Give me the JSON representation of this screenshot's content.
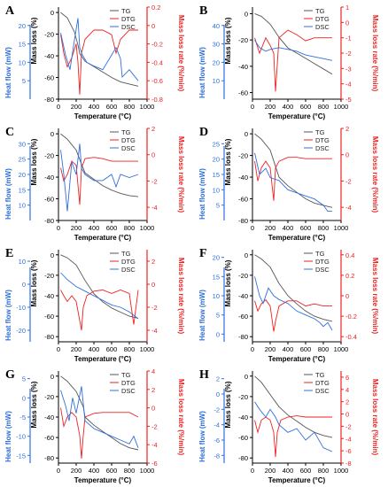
{
  "figure": {
    "series_names": [
      "TG",
      "DTG",
      "DSC"
    ],
    "colors": {
      "tg": "#555555",
      "dtg": "#ee2222",
      "dsc": "#2f6fde",
      "axis": "#000000"
    },
    "axis_labels": {
      "x": "Temperature (°C)",
      "left_tg": "Mass loss (%)",
      "left_dsc": "Heat flow (mW)",
      "right": "Mass loss rate (%/min)"
    }
  },
  "chart_data": [
    {
      "panel": "A",
      "type": "line",
      "x_ticks": [
        0,
        200,
        400,
        600,
        800,
        1000
      ],
      "tg_axis": {
        "ticks": [
          0,
          -20,
          -40,
          -60,
          -80
        ],
        "range": [
          -80,
          5
        ]
      },
      "dsc_axis": {
        "ticks": [
          5,
          10,
          15,
          20
        ],
        "range": [
          0,
          25
        ]
      },
      "dtg_axis": {
        "ticks": [
          0.2,
          0.0,
          -0.2,
          -0.4,
          -0.6,
          -0.8
        ],
        "range": [
          -0.8,
          0.2
        ]
      },
      "series": [
        {
          "name": "TG",
          "axis": "tg",
          "x": [
            25,
            100,
            180,
            220,
            240,
            300,
            400,
            500,
            600,
            700,
            800,
            900
          ],
          "y": [
            0,
            -5,
            -18,
            -30,
            -38,
            -45,
            -50,
            -55,
            -60,
            -64,
            -66,
            -68
          ]
        },
        {
          "name": "DTG",
          "axis": "dtg",
          "x": [
            25,
            60,
            100,
            150,
            200,
            220,
            240,
            260,
            300,
            400,
            500,
            600,
            650,
            700,
            800,
            900
          ],
          "y": [
            -0.1,
            -0.3,
            -0.45,
            -0.35,
            -0.2,
            -0.4,
            -0.75,
            -0.3,
            -0.15,
            -0.05,
            -0.05,
            -0.1,
            -0.3,
            -0.15,
            -0.05,
            -0.05
          ]
        },
        {
          "name": "DSC",
          "axis": "dsc",
          "x": [
            25,
            80,
            130,
            180,
            220,
            240,
            270,
            320,
            400,
            500,
            600,
            650,
            700,
            720,
            800,
            900
          ],
          "y": [
            18,
            12,
            8,
            16,
            22,
            14,
            12,
            10,
            9,
            8,
            12,
            14,
            11,
            6,
            8,
            5
          ]
        }
      ]
    },
    {
      "panel": "B",
      "type": "line",
      "x_ticks": [
        0,
        200,
        400,
        600,
        800,
        1000
      ],
      "tg_axis": {
        "ticks": [
          0,
          -20,
          -40,
          -60
        ],
        "range": [
          -65,
          5
        ]
      },
      "dsc_axis": {
        "ticks": [
          10,
          20,
          30,
          40
        ],
        "range": [
          0,
          50
        ]
      },
      "dtg_axis": {
        "ticks": [
          1,
          0,
          -1,
          -2,
          -3,
          -4,
          -5
        ],
        "range": [
          -5,
          1
        ]
      },
      "series": [
        {
          "name": "TG",
          "axis": "tg",
          "x": [
            25,
            100,
            200,
            300,
            400,
            500,
            600,
            700,
            800,
            900
          ],
          "y": [
            0,
            -2,
            -8,
            -18,
            -26,
            -30,
            -34,
            -38,
            -42,
            -46
          ]
        },
        {
          "name": "DTG",
          "axis": "dtg",
          "x": [
            25,
            80,
            150,
            200,
            240,
            260,
            300,
            400,
            500,
            600,
            700,
            800,
            900
          ],
          "y": [
            -1,
            -2,
            -1,
            -1.5,
            -2,
            -4.5,
            -1,
            -0.5,
            -0.8,
            -1.2,
            -1,
            -1,
            -1
          ]
        },
        {
          "name": "DSC",
          "axis": "dsc",
          "x": [
            25,
            80,
            150,
            200,
            300,
            400,
            500,
            600,
            700,
            800,
            900
          ],
          "y": [
            32,
            28,
            26,
            27,
            28,
            27,
            26,
            24,
            23,
            22,
            21
          ]
        }
      ]
    },
    {
      "panel": "C",
      "type": "line",
      "x_ticks": [
        0,
        200,
        400,
        600,
        800,
        1000
      ],
      "tg_axis": {
        "ticks": [
          0,
          -20,
          -40,
          -60,
          -80
        ],
        "range": [
          -80,
          5
        ]
      },
      "dsc_axis": {
        "ticks": [
          10,
          15,
          20,
          25,
          30
        ],
        "range": [
          5,
          35
        ]
      },
      "dtg_axis": {
        "ticks": [
          2,
          0,
          -2,
          -4
        ],
        "range": [
          -5,
          2
        ]
      },
      "series": [
        {
          "name": "TG",
          "axis": "tg",
          "x": [
            25,
            100,
            200,
            260,
            300,
            400,
            500,
            600,
            700,
            800,
            900
          ],
          "y": [
            0,
            -5,
            -15,
            -28,
            -36,
            -42,
            -48,
            -52,
            -55,
            -57,
            -58
          ]
        },
        {
          "name": "DTG",
          "axis": "dtg",
          "x": [
            25,
            60,
            100,
            150,
            200,
            240,
            260,
            300,
            400,
            500,
            600,
            700,
            800,
            900
          ],
          "y": [
            -1,
            -2,
            -1.5,
            -0.5,
            -0.8,
            -3.8,
            -1,
            -0.3,
            -0.2,
            -0.3,
            -0.5,
            -0.5,
            -0.5,
            -0.5
          ]
        },
        {
          "name": "DSC",
          "axis": "dsc",
          "x": [
            25,
            60,
            100,
            150,
            200,
            240,
            260,
            300,
            400,
            500,
            600,
            650,
            700,
            800,
            900
          ],
          "y": [
            28,
            20,
            8,
            24,
            20,
            30,
            22,
            20,
            18,
            18,
            20,
            16,
            20,
            19,
            20
          ]
        }
      ]
    },
    {
      "panel": "D",
      "type": "line",
      "x_ticks": [
        0,
        200,
        400,
        600,
        800,
        1000
      ],
      "tg_axis": {
        "ticks": [
          0,
          -20,
          -40,
          -60,
          -80
        ],
        "range": [
          -80,
          5
        ]
      },
      "dsc_axis": {
        "ticks": [
          5,
          10,
          15,
          20,
          25
        ],
        "range": [
          0,
          30
        ]
      },
      "dtg_axis": {
        "ticks": [
          2,
          0,
          -2,
          -4
        ],
        "range": [
          -5,
          2
        ]
      },
      "series": [
        {
          "name": "TG",
          "axis": "tg",
          "x": [
            25,
            100,
            200,
            260,
            300,
            400,
            500,
            600,
            700,
            800,
            900
          ],
          "y": [
            0,
            -5,
            -15,
            -30,
            -40,
            -48,
            -54,
            -60,
            -64,
            -66,
            -68
          ]
        },
        {
          "name": "DTG",
          "axis": "dtg",
          "x": [
            25,
            60,
            100,
            150,
            200,
            240,
            260,
            300,
            400,
            500,
            600,
            700,
            800,
            900
          ],
          "y": [
            -0.5,
            -2,
            -1,
            -0.5,
            -1,
            -3.5,
            -1,
            -0.5,
            -0.2,
            -0.2,
            -0.3,
            -0.3,
            -0.3,
            -0.3
          ]
        },
        {
          "name": "DSC",
          "axis": "dsc",
          "x": [
            25,
            80,
            150,
            200,
            300,
            400,
            500,
            600,
            700,
            800,
            850,
            900
          ],
          "y": [
            22,
            15,
            17,
            14,
            13,
            10,
            9,
            8,
            7,
            5,
            3,
            3
          ]
        }
      ]
    },
    {
      "panel": "E",
      "type": "line",
      "x_ticks": [
        0,
        200,
        400,
        600,
        800,
        1000
      ],
      "tg_axis": {
        "ticks": [
          0,
          -20,
          -40,
          -60,
          -80
        ],
        "range": [
          -85,
          5
        ]
      },
      "dsc_axis": {
        "ticks": [
          -20,
          -10,
          0,
          10
        ],
        "range": [
          -25,
          15
        ]
      },
      "dtg_axis": {
        "ticks": [
          2,
          0,
          -2,
          -4
        ],
        "range": [
          -5,
          3
        ]
      },
      "series": [
        {
          "name": "TG",
          "axis": "tg",
          "x": [
            25,
            100,
            200,
            300,
            400,
            500,
            600,
            700,
            800,
            900
          ],
          "y": [
            0,
            -3,
            -10,
            -25,
            -38,
            -46,
            -52,
            -56,
            -60,
            -62
          ]
        },
        {
          "name": "DTG",
          "axis": "dtg",
          "x": [
            25,
            60,
            100,
            150,
            200,
            260,
            280,
            320,
            400,
            500,
            600,
            700,
            800,
            850,
            900
          ],
          "y": [
            -0.5,
            -1,
            -1.5,
            -1,
            -1.5,
            -4,
            -2,
            -1,
            -0.6,
            -0.5,
            -0.8,
            -0.5,
            -0.8,
            -3.5,
            -0.5
          ]
        },
        {
          "name": "DSC",
          "axis": "dsc",
          "x": [
            25,
            100,
            200,
            300,
            400,
            500,
            600,
            700,
            800,
            900
          ],
          "y": [
            5,
            2,
            -1,
            -3,
            -5,
            -7,
            -9,
            -10,
            -12,
            -15
          ]
        }
      ]
    },
    {
      "panel": "F",
      "type": "line",
      "x_ticks": [
        0,
        200,
        400,
        600,
        800,
        1000
      ],
      "tg_axis": {
        "ticks": [
          0,
          -20,
          -40,
          -60,
          -80
        ],
        "range": [
          -85,
          5
        ]
      },
      "dsc_axis": {
        "ticks": [
          0,
          5,
          10,
          15,
          20
        ],
        "range": [
          -2,
          22
        ]
      },
      "dtg_axis": {
        "ticks": [
          0.4,
          0.2,
          0.0,
          -0.2,
          -0.4
        ],
        "range": [
          -0.45,
          0.45
        ]
      },
      "series": [
        {
          "name": "TG",
          "axis": "tg",
          "x": [
            25,
            100,
            200,
            300,
            400,
            500,
            600,
            700,
            800,
            900
          ],
          "y": [
            0,
            -4,
            -12,
            -28,
            -40,
            -48,
            -55,
            -60,
            -63,
            -65
          ]
        },
        {
          "name": "DTG",
          "axis": "dtg",
          "x": [
            25,
            60,
            100,
            150,
            200,
            240,
            260,
            300,
            400,
            500,
            600,
            700,
            800,
            900
          ],
          "y": [
            -0.05,
            -0.15,
            -0.08,
            -0.04,
            -0.1,
            -0.35,
            -0.25,
            -0.1,
            -0.05,
            -0.05,
            -0.1,
            -0.08,
            -0.1,
            -0.1
          ]
        },
        {
          "name": "DSC",
          "axis": "dsc",
          "x": [
            25,
            80,
            120,
            180,
            240,
            300,
            400,
            500,
            600,
            700,
            760,
            800,
            850,
            900
          ],
          "y": [
            15,
            10,
            8,
            12,
            10,
            9,
            8,
            6,
            5,
            4,
            3,
            2,
            3,
            1
          ]
        }
      ]
    },
    {
      "panel": "G",
      "type": "line",
      "x_ticks": [
        0,
        200,
        400,
        600,
        800,
        1000
      ],
      "tg_axis": {
        "ticks": [
          0,
          -20,
          -40,
          -60,
          -80
        ],
        "range": [
          -85,
          5
        ]
      },
      "dsc_axis": {
        "ticks": [
          -15,
          -10,
          -5,
          0,
          5
        ],
        "range": [
          -17,
          7
        ]
      },
      "dtg_axis": {
        "ticks": [
          4,
          2,
          0,
          -2,
          -4,
          -6
        ],
        "range": [
          -6,
          4
        ]
      },
      "series": [
        {
          "name": "TG",
          "axis": "tg",
          "x": [
            25,
            100,
            200,
            280,
            300,
            400,
            500,
            600,
            700,
            800,
            900
          ],
          "y": [
            0,
            -5,
            -15,
            -30,
            -40,
            -48,
            -54,
            -60,
            -66,
            -70,
            -72
          ]
        },
        {
          "name": "DTG",
          "axis": "dtg",
          "x": [
            25,
            60,
            100,
            150,
            200,
            240,
            260,
            280,
            300,
            350,
            400,
            500,
            600,
            700,
            800,
            900
          ],
          "y": [
            0,
            -2,
            -1,
            -0.5,
            -1,
            -3,
            -5.5,
            -3,
            -1,
            -0.8,
            -0.6,
            -0.5,
            -0.5,
            -0.5,
            -0.5,
            -1
          ]
        },
        {
          "name": "DSC",
          "axis": "dsc",
          "x": [
            25,
            80,
            120,
            160,
            200,
            260,
            300,
            400,
            500,
            600,
            700,
            800,
            850,
            900
          ],
          "y": [
            2,
            -2,
            -6,
            0,
            -4,
            3,
            -6,
            -8,
            -9,
            -10,
            -11,
            -12,
            -10,
            -13
          ]
        }
      ]
    },
    {
      "panel": "H",
      "type": "line",
      "x_ticks": [
        0,
        200,
        400,
        600,
        800,
        1000
      ],
      "tg_axis": {
        "ticks": [
          0,
          -20,
          -40,
          -60,
          -80
        ],
        "range": [
          -85,
          5
        ]
      },
      "dsc_axis": {
        "ticks": [
          -8,
          -6,
          -4,
          -2,
          0,
          2
        ],
        "range": [
          -9,
          3
        ]
      },
      "dtg_axis": {
        "ticks": [
          6,
          4,
          2,
          0,
          -2,
          -4,
          -6,
          -8
        ],
        "range": [
          -8,
          7
        ]
      },
      "series": [
        {
          "name": "TG",
          "axis": "tg",
          "x": [
            25,
            100,
            200,
            300,
            400,
            500,
            600,
            700,
            800,
            900
          ],
          "y": [
            0,
            -6,
            -18,
            -30,
            -38,
            -44,
            -50,
            -55,
            -58,
            -60
          ]
        },
        {
          "name": "DTG",
          "axis": "dtg",
          "x": [
            25,
            60,
            100,
            150,
            200,
            240,
            260,
            280,
            320,
            400,
            500,
            600,
            700,
            800,
            900
          ],
          "y": [
            -1,
            -3,
            -1,
            -0.5,
            -1,
            -3,
            -7,
            -3,
            -1,
            -0.5,
            -0.3,
            -0.5,
            -0.5,
            -0.5,
            -0.5
          ]
        },
        {
          "name": "DSC",
          "axis": "dsc",
          "x": [
            25,
            80,
            150,
            200,
            260,
            300,
            400,
            500,
            600,
            700,
            800,
            900
          ],
          "y": [
            -1,
            -2,
            -3,
            -2,
            -3,
            -4,
            -5,
            -4.5,
            -6,
            -5,
            -7,
            -7.5
          ]
        }
      ]
    }
  ]
}
